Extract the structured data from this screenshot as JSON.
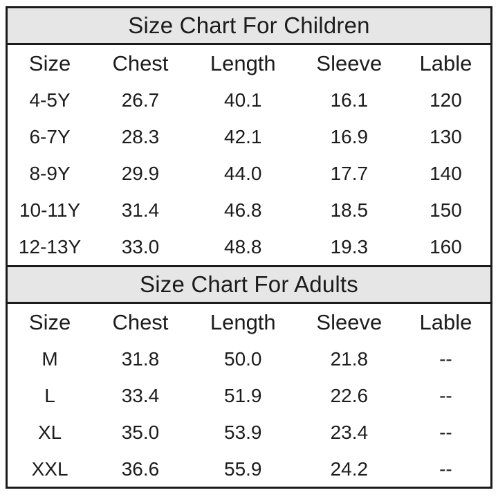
{
  "page": {
    "background": "#ffffff",
    "border_color": "#1a1a1a",
    "band_background": "#e6e6e6",
    "text_color": "#1c1c1c"
  },
  "chart_data": [
    {
      "type": "table",
      "title": "Size Chart For Children",
      "columns": [
        "Size",
        "Chest",
        "Length",
        "Sleeve",
        "Lable"
      ],
      "rows": [
        [
          "4-5Y",
          "26.7",
          "40.1",
          "16.1",
          "120"
        ],
        [
          "6-7Y",
          "28.3",
          "42.1",
          "16.9",
          "130"
        ],
        [
          "8-9Y",
          "29.9",
          "44.0",
          "17.7",
          "140"
        ],
        [
          "10-11Y",
          "31.4",
          "46.8",
          "18.5",
          "150"
        ],
        [
          "12-13Y",
          "33.0",
          "48.8",
          "19.3",
          "160"
        ]
      ]
    },
    {
      "type": "table",
      "title": "Size Chart For Adults",
      "columns": [
        "Size",
        "Chest",
        "Length",
        "Sleeve",
        "Lable"
      ],
      "rows": [
        [
          "M",
          "31.8",
          "50.0",
          "21.8",
          "--"
        ],
        [
          "L",
          "33.4",
          "51.9",
          "22.6",
          "--"
        ],
        [
          "XL",
          "35.0",
          "53.9",
          "23.4",
          "--"
        ],
        [
          "XXL",
          "36.6",
          "55.9",
          "24.2",
          "--"
        ]
      ]
    }
  ]
}
